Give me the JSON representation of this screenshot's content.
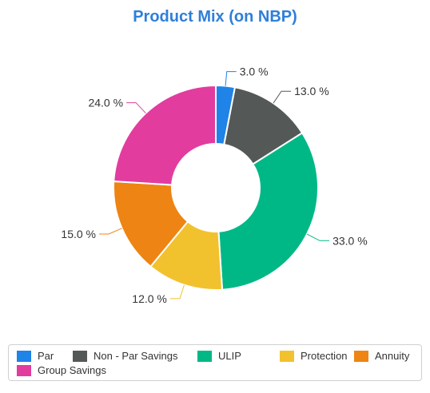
{
  "chart_data": {
    "type": "pie",
    "title": "Product Mix (on NBP)",
    "categories": [
      "Par",
      "Non - Par Savings",
      "ULIP",
      "Protection",
      "Annuity",
      "Group Savings"
    ],
    "values": [
      3.0,
      13.0,
      33.0,
      12.0,
      15.0,
      24.0
    ],
    "labels": [
      "3.0 %",
      "13.0 %",
      "33.0 %",
      "12.0 %",
      "15.0 %",
      "24.0 %"
    ],
    "colors": [
      "#1f83e8",
      "#545857",
      "#00b886",
      "#f2c12e",
      "#ee8413",
      "#e23c9f"
    ],
    "donut": true,
    "legend": "bottom"
  }
}
